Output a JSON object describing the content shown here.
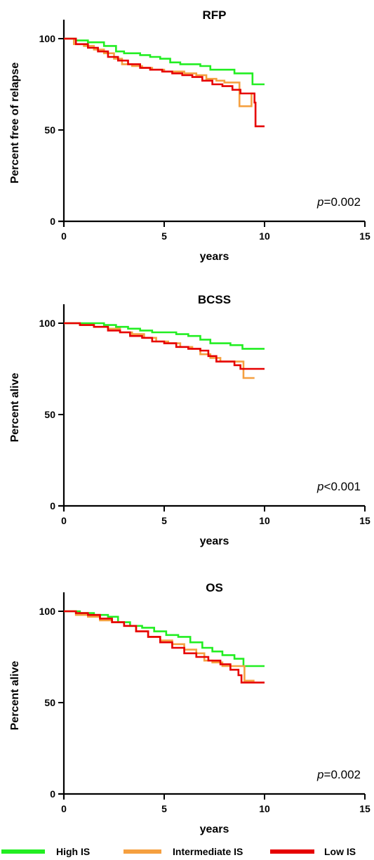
{
  "chart_data": [
    {
      "type": "line",
      "title": "RFP",
      "xlabel": "years",
      "ylabel": "Percent free of relapse",
      "xlim": [
        0,
        15
      ],
      "ylim": [
        0,
        100
      ],
      "xticks": [
        0,
        5,
        10,
        15
      ],
      "yticks": [
        0,
        50,
        100
      ],
      "p_prefix": "p",
      "p_value": "=0.002",
      "series": [
        {
          "name": "High IS",
          "color": "#22ee22",
          "x": [
            0,
            0.6,
            1.2,
            2.0,
            2.6,
            3.0,
            3.4,
            3.8,
            4.3,
            4.8,
            5.3,
            5.8,
            6.3,
            6.8,
            7.3,
            7.8,
            8.5,
            9.3,
            9.4,
            10.0
          ],
          "y": [
            100,
            99,
            98,
            96,
            93,
            92,
            92,
            91,
            90,
            89,
            87,
            86,
            86,
            85,
            83,
            83,
            81,
            81,
            75,
            75
          ]
        },
        {
          "name": "Intermediate IS",
          "color": "#f5a040",
          "x": [
            0,
            0.5,
            1.0,
            1.5,
            2.0,
            2.5,
            2.9,
            3.4,
            3.9,
            4.4,
            5.0,
            5.5,
            6.0,
            6.6,
            7.1,
            7.6,
            8.0,
            8.7,
            8.75,
            9.3,
            9.35,
            9.5
          ],
          "y": [
            100,
            97,
            96,
            94,
            92,
            89,
            86,
            85,
            84,
            83,
            82,
            82,
            81,
            80,
            78,
            77,
            76,
            76,
            63,
            63,
            70,
            70
          ]
        },
        {
          "name": "Low IS",
          "color": "#e60000",
          "x": [
            0,
            0.6,
            1.2,
            1.7,
            2.2,
            2.7,
            3.2,
            3.8,
            4.3,
            4.9,
            5.4,
            5.9,
            6.4,
            6.9,
            7.4,
            7.9,
            8.4,
            8.8,
            9.0,
            9.5,
            9.55,
            10.0
          ],
          "y": [
            100,
            97,
            95,
            93,
            90,
            88,
            86,
            84,
            83,
            82,
            81,
            80,
            79,
            77,
            75,
            74,
            72,
            70,
            70,
            65,
            52,
            52
          ]
        }
      ]
    },
    {
      "type": "line",
      "title": "BCSS",
      "xlabel": "years",
      "ylabel": "Percent alive",
      "xlim": [
        0,
        15
      ],
      "ylim": [
        0,
        100
      ],
      "xticks": [
        0,
        5,
        10,
        15
      ],
      "yticks": [
        0,
        50,
        100
      ],
      "p_prefix": "p",
      "p_value": "<0.001",
      "series": [
        {
          "name": "High IS",
          "color": "#22ee22",
          "x": [
            0,
            1.0,
            2.0,
            2.6,
            3.2,
            3.8,
            4.4,
            5.0,
            5.6,
            6.2,
            6.8,
            7.3,
            7.8,
            8.3,
            8.9,
            10.0
          ],
          "y": [
            100,
            100,
            99,
            98,
            97,
            96,
            95,
            95,
            94,
            93,
            91,
            89,
            89,
            88,
            86,
            86
          ]
        },
        {
          "name": "Intermediate IS",
          "color": "#f5a040",
          "x": [
            0,
            0.8,
            1.5,
            2.2,
            2.8,
            3.4,
            4.0,
            4.6,
            5.2,
            5.8,
            6.4,
            6.8,
            7.3,
            7.8,
            8.3,
            8.9,
            8.95,
            9.5
          ],
          "y": [
            100,
            99,
            98,
            97,
            95,
            94,
            92,
            90,
            89,
            87,
            86,
            83,
            81,
            79,
            79,
            79,
            70,
            70
          ]
        },
        {
          "name": "Low IS",
          "color": "#e60000",
          "x": [
            0,
            0.8,
            1.5,
            2.2,
            2.8,
            3.3,
            3.9,
            4.4,
            5.0,
            5.6,
            6.2,
            6.8,
            7.2,
            7.6,
            8.0,
            8.5,
            8.8,
            9.0,
            10.0
          ],
          "y": [
            100,
            99,
            98,
            96,
            95,
            93,
            92,
            90,
            89,
            87,
            86,
            85,
            82,
            79,
            79,
            77,
            75,
            75,
            75
          ]
        }
      ]
    },
    {
      "type": "line",
      "title": "OS",
      "xlabel": "years",
      "ylabel": "Percent alive",
      "xlim": [
        0,
        15
      ],
      "ylim": [
        0,
        100
      ],
      "xticks": [
        0,
        5,
        10,
        15
      ],
      "yticks": [
        0,
        50,
        100
      ],
      "p_prefix": "p",
      "p_value": "=0.002",
      "series": [
        {
          "name": "High IS",
          "color": "#22ee22",
          "x": [
            0,
            0.8,
            1.5,
            2.2,
            2.7,
            3.3,
            3.9,
            4.5,
            5.1,
            5.7,
            6.3,
            6.9,
            7.4,
            7.9,
            8.5,
            8.9,
            8.95,
            10.0
          ],
          "y": [
            100,
            99,
            98,
            97,
            94,
            92,
            91,
            89,
            87,
            86,
            83,
            80,
            78,
            76,
            74,
            74,
            70,
            70
          ]
        },
        {
          "name": "Intermediate IS",
          "color": "#f5a040",
          "x": [
            0,
            0.6,
            1.2,
            1.8,
            2.4,
            3.0,
            3.6,
            4.2,
            4.8,
            5.4,
            6.0,
            6.6,
            7.0,
            7.4,
            7.9,
            8.4,
            8.9,
            9.0,
            9.5
          ],
          "y": [
            100,
            98,
            97,
            95,
            94,
            92,
            89,
            86,
            84,
            82,
            79,
            77,
            73,
            72,
            70,
            70,
            70,
            62,
            62
          ]
        },
        {
          "name": "Low IS",
          "color": "#e60000",
          "x": [
            0,
            0.6,
            1.2,
            1.8,
            2.4,
            3.0,
            3.6,
            4.2,
            4.8,
            5.4,
            6.0,
            6.6,
            7.2,
            7.8,
            8.3,
            8.7,
            8.85,
            10.0
          ],
          "y": [
            100,
            99,
            98,
            96,
            94,
            92,
            89,
            86,
            83,
            80,
            77,
            75,
            73,
            71,
            68,
            65,
            61,
            61
          ]
        }
      ]
    }
  ],
  "legend": [
    {
      "label": "High IS",
      "color": "#22ee22"
    },
    {
      "label": "Intermediate IS",
      "color": "#f5a040"
    },
    {
      "label": "Low IS",
      "color": "#e60000"
    }
  ]
}
